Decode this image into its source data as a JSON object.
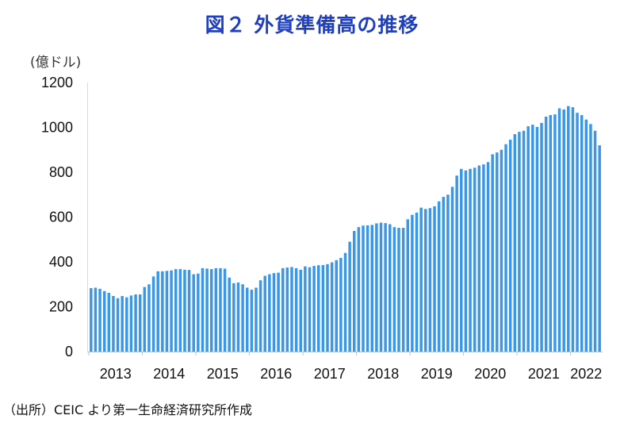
{
  "header": {
    "title": "図２ 外貨準備高の推移"
  },
  "footer": {
    "source": "（出所）CEIC より第一生命経済研究所作成"
  },
  "colors": {
    "bar": "#3a96e6",
    "title": "#1f3fbf"
  },
  "chart_data": {
    "type": "bar",
    "title": "図２ 外貨準備高の推移",
    "ylabel": "(億ドル)",
    "xlabel": "",
    "ylim": [
      0,
      1200
    ],
    "yticks": [
      0,
      200,
      400,
      600,
      800,
      1000,
      1200
    ],
    "grid": false,
    "x_tick_labels": [
      "2013",
      "2014",
      "2015",
      "2016",
      "2017",
      "2018",
      "2019",
      "2020",
      "2021",
      "2022"
    ],
    "frequency": "monthly",
    "start": "2013-01",
    "end": "2022-07",
    "series": [
      {
        "name": "外貨準備高",
        "values": [
          283,
          285,
          280,
          270,
          262,
          248,
          238,
          248,
          242,
          250,
          255,
          255,
          288,
          300,
          335,
          358,
          358,
          360,
          362,
          368,
          368,
          365,
          364,
          345,
          348,
          372,
          370,
          368,
          372,
          372,
          370,
          330,
          305,
          308,
          300,
          285,
          276,
          285,
          318,
          338,
          345,
          350,
          352,
          372,
          375,
          377,
          372,
          365,
          380,
          376,
          382,
          385,
          386,
          390,
          398,
          408,
          418,
          440,
          490,
          538,
          555,
          562,
          563,
          565,
          572,
          575,
          573,
          568,
          555,
          552,
          552,
          590,
          610,
          620,
          642,
          636,
          640,
          648,
          670,
          690,
          700,
          735,
          785,
          815,
          808,
          815,
          820,
          830,
          835,
          845,
          880,
          888,
          900,
          925,
          945,
          970,
          980,
          985,
          1005,
          1012,
          1002,
          1020,
          1048,
          1055,
          1058,
          1085,
          1080,
          1095,
          1090,
          1065,
          1055,
          1035,
          1015,
          985,
          920
        ]
      }
    ]
  }
}
